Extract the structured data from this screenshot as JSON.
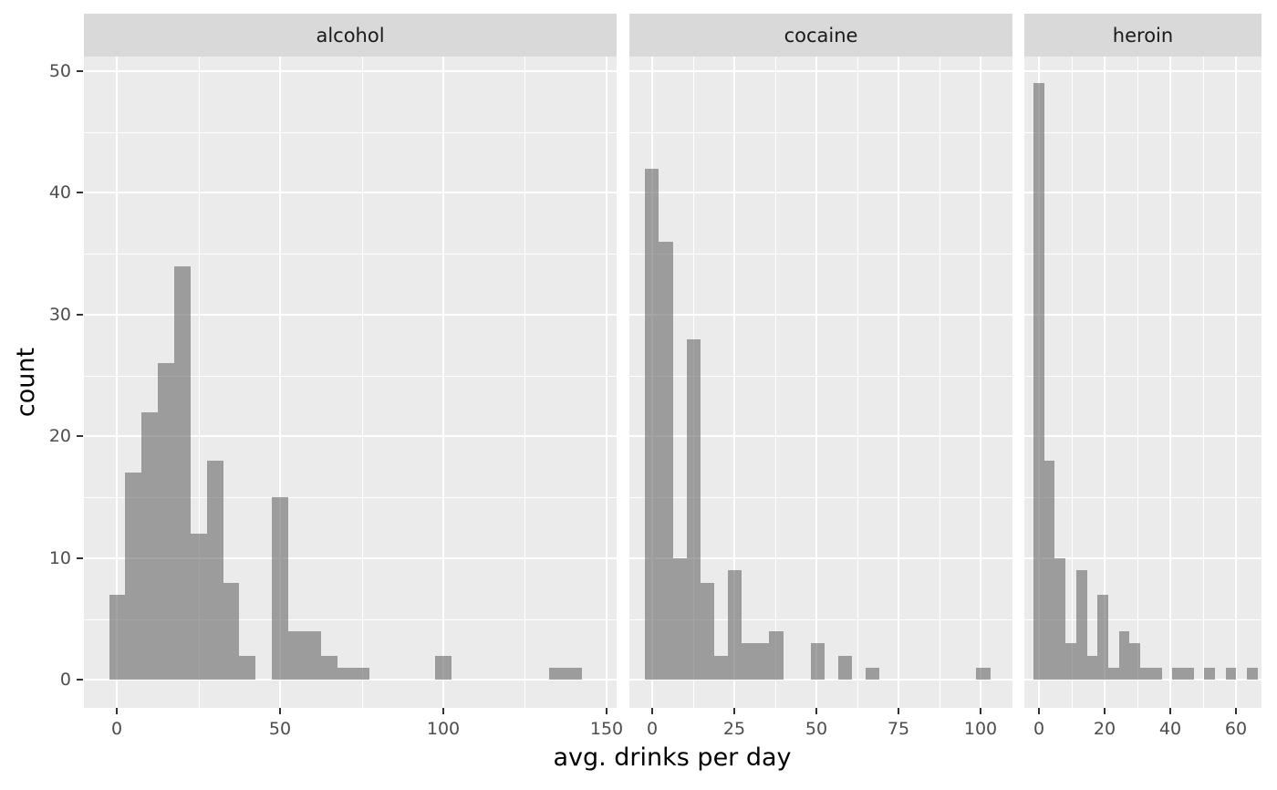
{
  "chart_data": {
    "type": "bar",
    "subtype": "faceted-histogram",
    "title": "",
    "xlabel": "avg. drinks per day",
    "ylabel": "count",
    "grid": true,
    "legend": false,
    "panel_bg": "#EBEBEB",
    "strip_bg": "#D9D9D9",
    "bar_color": "rgba(103,103,103,0.6)",
    "tick_label_color": "#4d4d4d",
    "strip_text_color": "#1a1a1a",
    "y_ticks": [
      0,
      10,
      20,
      30,
      40,
      50
    ],
    "y_domain": [
      -2.3,
      51.2
    ],
    "ylim": [
      0,
      50
    ],
    "facets": [
      {
        "label": "alcohol",
        "x_ticks": [
          0,
          50,
          100,
          150
        ],
        "x_domain": [
          -10.2,
          153.2
        ],
        "bin_start": -2.5,
        "bin_width": 5,
        "counts": [
          7,
          17,
          22,
          26,
          34,
          12,
          18,
          8,
          2,
          0,
          15,
          4,
          4,
          2,
          1,
          1,
          0,
          0,
          0,
          0,
          2,
          0,
          0,
          0,
          0,
          0,
          0,
          1,
          1,
          0
        ]
      },
      {
        "label": "cocaine",
        "x_ticks": [
          0,
          25,
          50,
          75,
          100
        ],
        "x_domain": [
          -6.9,
          109.7
        ],
        "bin_start": -2.1,
        "bin_width": 4.2,
        "counts": [
          42,
          36,
          10,
          28,
          8,
          2,
          9,
          3,
          3,
          4,
          0,
          0,
          3,
          0,
          2,
          0,
          1,
          0,
          0,
          0,
          0,
          0,
          0,
          0,
          1
        ]
      },
      {
        "label": "heroin",
        "x_ticks": [
          0,
          20,
          40,
          60
        ],
        "x_domain": [
          -4.4,
          67.8
        ],
        "bin_start": -1.6,
        "bin_width": 3.25,
        "counts": [
          49,
          18,
          10,
          3,
          9,
          2,
          7,
          1,
          4,
          3,
          1,
          1,
          0,
          1,
          1,
          0,
          1,
          0,
          1,
          0,
          1
        ]
      }
    ]
  }
}
